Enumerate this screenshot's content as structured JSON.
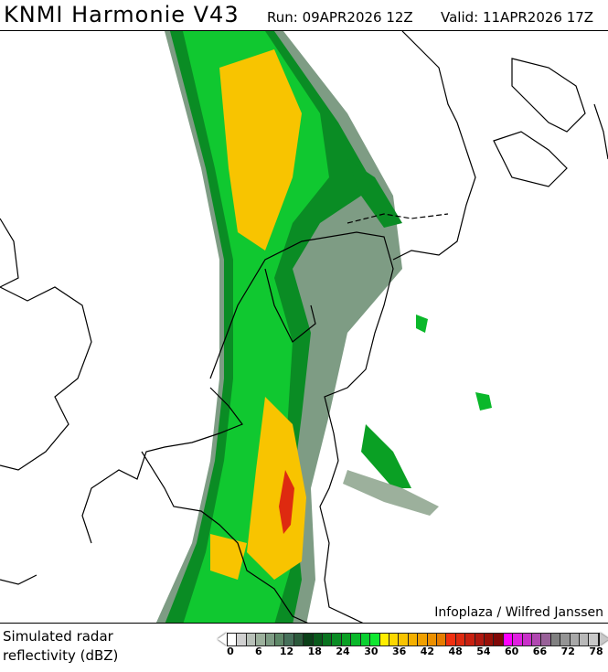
{
  "header": {
    "title": "KNMI Harmonie V43",
    "run": "Run: 09APR2026 12Z",
    "valid": "Valid: 11APR2026 17Z"
  },
  "map": {
    "credit": "Infoplaza / Wilfred Janssen"
  },
  "legend": {
    "label_line1": "Simulated radar",
    "label_line2": "reflectivity (dBZ)",
    "ticks": [
      "0",
      "6",
      "12",
      "18",
      "24",
      "30",
      "36",
      "42",
      "48",
      "54",
      "60",
      "66",
      "72",
      "78"
    ],
    "colors": [
      "#ffffff",
      "#d0d0d0",
      "#b8c0b8",
      "#9cb09c",
      "#7e9c84",
      "#5e8868",
      "#46705a",
      "#2c5a3c",
      "#0a4018",
      "#0a5a1c",
      "#0a7420",
      "#0a8c24",
      "#0aa024",
      "#0ab82a",
      "#0ad030",
      "#10e830",
      "#ffee00",
      "#fcd800",
      "#f8c400",
      "#f4b000",
      "#f0a000",
      "#ec9000",
      "#e67c00",
      "#f03010",
      "#de2a10",
      "#c82010",
      "#b01810",
      "#981008",
      "#800808",
      "#ff00ff",
      "#e020e0",
      "#c830c8",
      "#b048b0",
      "#986098",
      "#808080",
      "#949494",
      "#a8a8a8",
      "#b8b8b8",
      "#c8c8c8"
    ]
  }
}
